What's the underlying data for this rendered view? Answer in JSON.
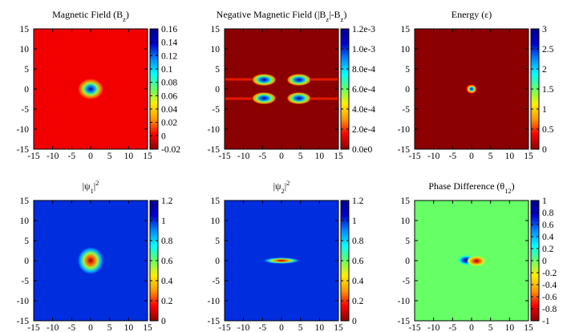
{
  "chart_data": [
    {
      "type": "heatmap",
      "title": "Magnetic Field (B<sub>z</sub>)",
      "title_parts": [
        [
          "Magnetic Field (B",
          ""
        ],
        [
          "z",
          "sub"
        ],
        [
          ")",
          ""
        ]
      ],
      "xlim": [
        -15,
        15
      ],
      "ylim": [
        -15,
        15
      ],
      "x_ticks": [
        -15,
        -10,
        -5,
        0,
        5,
        10,
        15
      ],
      "y_ticks": [
        -15,
        -10,
        -5,
        0,
        5,
        10,
        15
      ],
      "colorbar": {
        "range": [
          -0.02,
          0.16
        ],
        "tick_labels": [
          "0.16",
          "0.14",
          "0.12",
          "0.1",
          "0.08",
          "0.06",
          "0.04",
          "0.02",
          "0",
          "-0.02"
        ]
      },
      "background_value": 0.0,
      "features": [
        {
          "shape": "spot",
          "x": 0,
          "y": 0,
          "sx": 1.3,
          "sy": 1.0,
          "peak": 0.16
        }
      ]
    },
    {
      "type": "heatmap",
      "title": "Negative Magnetic Field (|B_z|-B_z)",
      "title_parts": [
        [
          "Negative Magnetic Field (|B",
          ""
        ],
        [
          "z",
          "sub"
        ],
        [
          "|-B",
          ""
        ],
        [
          "z",
          "sub"
        ],
        [
          ")",
          ""
        ]
      ],
      "xlim": [
        -15,
        15
      ],
      "ylim": [
        -15,
        15
      ],
      "x_ticks": [
        -15,
        -10,
        -5,
        0,
        5,
        10,
        15
      ],
      "y_ticks": [
        -15,
        -10,
        -5,
        0,
        5,
        10,
        15
      ],
      "colorbar": {
        "range": [
          0,
          0.0012
        ],
        "tick_labels": [
          "1.2e-3",
          "1.0e-3",
          "8.0e-4",
          "6.0e-4",
          "4.0e-4",
          "2.0e-4",
          "0.0e0"
        ]
      },
      "background_value": 0.0,
      "features": [
        {
          "shape": "lobe",
          "x": -5,
          "y": 2.4,
          "peak": 0.0012
        },
        {
          "shape": "lobe",
          "x": 5,
          "y": 2.4,
          "peak": 0.0012
        },
        {
          "shape": "lobe",
          "x": -5,
          "y": -2.4,
          "peak": 0.0012
        },
        {
          "shape": "lobe",
          "x": 5,
          "y": -2.4,
          "peak": 0.0012
        }
      ]
    },
    {
      "type": "heatmap",
      "title": "Energy (ε)",
      "title_parts": [
        [
          "Energy (ε)",
          ""
        ]
      ],
      "xlim": [
        -15,
        15
      ],
      "ylim": [
        -15,
        15
      ],
      "x_ticks": [
        -15,
        -10,
        -5,
        0,
        5,
        10,
        15
      ],
      "y_ticks": [
        -15,
        -10,
        -5,
        0,
        5,
        10,
        15
      ],
      "colorbar": {
        "range": [
          0,
          3
        ],
        "tick_labels": [
          "3",
          "2.5",
          "2",
          "1.5",
          "1",
          "0.5",
          "0"
        ]
      },
      "background_value": 0.0,
      "features": [
        {
          "shape": "spot",
          "x": 0,
          "y": 0,
          "sx": 0.6,
          "sy": 0.5,
          "peak": 3
        }
      ]
    },
    {
      "type": "heatmap",
      "title": "|ψ1|2",
      "title_parts": [
        [
          "|ψ",
          ""
        ],
        [
          "1",
          "sub"
        ],
        [
          "|",
          ""
        ],
        [
          "2",
          "sup"
        ]
      ],
      "xlim": [
        -15,
        15
      ],
      "ylim": [
        -15,
        15
      ],
      "x_ticks": [
        -15,
        -10,
        -5,
        0,
        5,
        10,
        15
      ],
      "y_ticks": [
        -15,
        -10,
        -5,
        0,
        5,
        10,
        15
      ],
      "colorbar": {
        "range": [
          0,
          1.2
        ],
        "tick_labels": [
          "1.2",
          "1",
          "0.8",
          "0.6",
          "0.4",
          "0.2",
          "0"
        ]
      },
      "background_value": 1.0,
      "features": [
        {
          "shape": "hole",
          "x": 0,
          "y": 0,
          "sx": 1.3,
          "sy": 1.3,
          "depth": 1.0
        }
      ]
    },
    {
      "type": "heatmap",
      "title": "|ψ2|2",
      "title_parts": [
        [
          "|ψ",
          ""
        ],
        [
          "2",
          "sub"
        ],
        [
          "|",
          ""
        ],
        [
          "2",
          "sup"
        ]
      ],
      "xlim": [
        -15,
        15
      ],
      "ylim": [
        -15,
        15
      ],
      "x_ticks": [
        -15,
        -10,
        -5,
        0,
        5,
        10,
        15
      ],
      "y_ticks": [
        -15,
        -10,
        -5,
        0,
        5,
        10,
        15
      ],
      "colorbar": {
        "range": [
          0,
          1.2
        ],
        "tick_labels": [
          "1.2",
          "1",
          "0.8",
          "0.6",
          "0.4",
          "0.2",
          "0"
        ]
      },
      "background_value": 1.0,
      "features": [
        {
          "shape": "hole",
          "x": 0,
          "y": 0,
          "sx": 1.8,
          "sy": 0.3,
          "depth": 1.0
        }
      ]
    },
    {
      "type": "heatmap",
      "title": "Phase Difference (θ12)",
      "title_parts": [
        [
          "Phase Difference (θ",
          ""
        ],
        [
          "12",
          "sub"
        ],
        [
          ")",
          ""
        ]
      ],
      "xlim": [
        -15,
        15
      ],
      "ylim": [
        -15,
        15
      ],
      "x_ticks": [
        -15,
        -10,
        -5,
        0,
        5,
        10,
        15
      ],
      "y_ticks": [
        -15,
        -10,
        -5,
        0,
        5,
        10,
        15
      ],
      "colorbar": {
        "range": [
          -1,
          1
        ],
        "tick_labels": [
          "1",
          "0.8",
          "0.6",
          "0.4",
          "0.2",
          "0",
          "-0.2",
          "-0.4",
          "-0.6",
          "-0.8",
          "-1"
        ]
      },
      "background_value": 0.0,
      "features": [
        {
          "shape": "dipole",
          "x": 0,
          "y": 0,
          "amplitude": 1
        }
      ]
    }
  ],
  "colormap": [
    "#8b0000",
    "#ff0000",
    "#ff9900",
    "#ffee00",
    "#66ff66",
    "#00ffff",
    "#0088ff",
    "#0000cd",
    "#00008b"
  ]
}
